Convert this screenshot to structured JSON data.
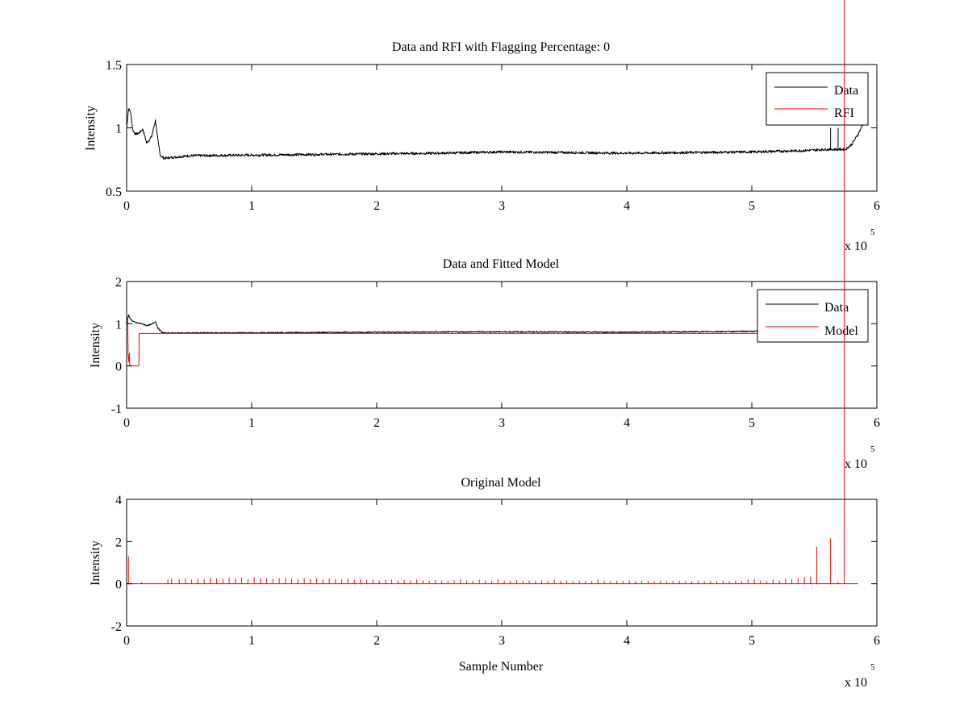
{
  "chart_data": [
    {
      "type": "line",
      "title": "Data and RFI with Flagging Percentage: 0",
      "xlabel": "",
      "ylabel": "Intensity",
      "xlim": [
        0,
        600000
      ],
      "ylim": [
        0.5,
        1.5
      ],
      "xticks": [
        0,
        1,
        2,
        3,
        4,
        5,
        6
      ],
      "xtick_labels": [
        "0",
        "1",
        "2",
        "3",
        "4",
        "5",
        "6"
      ],
      "yticks": [
        0.5,
        1,
        1.5
      ],
      "ytick_labels": [
        "0.5",
        "1",
        "1.5"
      ],
      "x_multiplier_label": "x 10",
      "x_multiplier_exponent": "5",
      "grid": false,
      "legend_position": "top-right",
      "series": [
        {
          "name": "Data",
          "color": "#000000",
          "x": [
            0,
            1500,
            3000,
            5000,
            7000,
            10000,
            13000,
            16000,
            20000,
            23000,
            25000,
            27000,
            30000,
            50000,
            100000,
            150000,
            200000,
            250000,
            300000,
            350000,
            400000,
            450000,
            500000,
            540000,
            560000,
            575000,
            580000,
            585000,
            590000
          ],
          "y": [
            1.0,
            1.15,
            1.13,
            0.98,
            0.95,
            0.96,
            0.99,
            0.88,
            0.93,
            1.06,
            0.9,
            0.78,
            0.76,
            0.78,
            0.785,
            0.79,
            0.795,
            0.8,
            0.81,
            0.805,
            0.8,
            0.805,
            0.81,
            0.82,
            0.83,
            0.83,
            0.87,
            0.95,
            1.05
          ],
          "noise": 0.01
        },
        {
          "name": "RFI",
          "color": "#ff0000",
          "x": [],
          "y": []
        }
      ],
      "boxes": [
        [
          563000,
          0.84,
          1.0
        ],
        [
          569000,
          0.84,
          1.0
        ]
      ]
    },
    {
      "type": "line",
      "title": "Data and Fitted Model",
      "xlabel": "",
      "ylabel": "Intensity",
      "xlim": [
        0,
        600000
      ],
      "ylim": [
        -1,
        2
      ],
      "xticks": [
        0,
        1,
        2,
        3,
        4,
        5,
        6
      ],
      "xtick_labels": [
        "0",
        "1",
        "2",
        "3",
        "4",
        "5",
        "6"
      ],
      "yticks": [
        -1,
        0,
        1,
        2
      ],
      "ytick_labels": [
        "-1",
        "0",
        "1",
        "2"
      ],
      "x_multiplier_label": "x 10",
      "x_multiplier_exponent": "5",
      "grid": false,
      "legend_position": "top-right",
      "series": [
        {
          "name": "Data",
          "color": "#000000",
          "x": [
            0,
            1500,
            3000,
            5000,
            8000,
            12000,
            16000,
            20000,
            23000,
            25000,
            28000,
            30000,
            100000,
            200000,
            300000,
            400000,
            500000,
            540000,
            550000
          ],
          "y": [
            1.0,
            1.2,
            1.12,
            1.05,
            1.02,
            1.0,
            0.96,
            0.98,
            1.06,
            0.9,
            0.8,
            0.78,
            0.785,
            0.8,
            0.81,
            0.8,
            0.82,
            0.83,
            0.84
          ],
          "noise": 0.015
        },
        {
          "name": "Model",
          "color": "#ff0000",
          "x": [
            0,
            800,
            1200,
            1700,
            2200,
            2500,
            3000,
            3500,
            9800,
            10000,
            540000,
            550000
          ],
          "y": [
            1.0,
            1.15,
            0.3,
            0.1,
            0.3,
            0.0,
            0.0,
            0.0,
            0.0,
            0.77,
            0.77,
            0.77
          ]
        }
      ]
    },
    {
      "type": "line",
      "title": "Original Model",
      "xlabel": "Sample Number",
      "ylabel": "Intensity",
      "xlim": [
        0,
        600000
      ],
      "ylim": [
        -2,
        4
      ],
      "xticks": [
        0,
        1,
        2,
        3,
        4,
        5,
        6
      ],
      "xtick_labels": [
        "0",
        "1",
        "2",
        "3",
        "4",
        "5",
        "6"
      ],
      "yticks": [
        -2,
        0,
        2,
        4
      ],
      "ytick_labels": [
        "-2",
        "0",
        "2",
        "4"
      ],
      "x_multiplier_label": "x 10",
      "x_multiplier_exponent": "5",
      "grid": false,
      "series": [
        {
          "color": "#ff0000",
          "baseline": 0,
          "x_start": 0,
          "x_end": 585000,
          "spikes_x": [
            1500,
            12000,
            33000,
            36000,
            42000,
            47000,
            52000,
            57000,
            62000,
            67000,
            72000,
            77000,
            82000,
            87000,
            92000,
            97000,
            102000,
            107000,
            112000,
            117000,
            122000,
            127000,
            132000,
            137000,
            142000,
            147000,
            152000,
            157000,
            162000,
            167000,
            172000,
            177000,
            182000,
            187000,
            192000,
            197000,
            202000,
            207000,
            212000,
            217000,
            222000,
            227000,
            232000,
            237000,
            242000,
            247000,
            252000,
            257000,
            262000,
            267000,
            272000,
            277000,
            282000,
            287000,
            292000,
            297000,
            302000,
            307000,
            312000,
            317000,
            322000,
            327000,
            332000,
            337000,
            342000,
            347000,
            352000,
            357000,
            362000,
            367000,
            372000,
            377000,
            382000,
            387000,
            392000,
            397000,
            402000,
            407000,
            412000,
            417000,
            422000,
            427000,
            432000,
            437000,
            442000,
            447000,
            452000,
            457000,
            462000,
            467000,
            472000,
            477000,
            482000,
            487000,
            492000,
            497000,
            502000,
            507000,
            512000,
            517000,
            522000,
            527000,
            532000,
            537000,
            542000,
            547000,
            552000,
            563000,
            569000,
            574000
          ],
          "spikes_y": [
            1.3,
            0.08,
            0.2,
            0.25,
            0.22,
            0.26,
            0.2,
            0.24,
            0.22,
            0.27,
            0.25,
            0.22,
            0.28,
            0.24,
            0.3,
            0.22,
            0.32,
            0.25,
            0.27,
            0.22,
            0.26,
            0.28,
            0.24,
            0.22,
            0.27,
            0.22,
            0.26,
            0.2,
            0.25,
            0.22,
            0.2,
            0.24,
            0.2,
            0.22,
            0.18,
            0.2,
            0.16,
            0.18,
            0.2,
            0.16,
            0.18,
            0.15,
            0.2,
            0.16,
            0.14,
            0.18,
            0.15,
            0.14,
            0.16,
            0.22,
            0.15,
            0.14,
            0.2,
            0.16,
            0.14,
            0.2,
            0.16,
            0.14,
            0.17,
            0.14,
            0.15,
            0.13,
            0.16,
            0.14,
            0.2,
            0.13,
            0.15,
            0.12,
            0.14,
            0.13,
            0.12,
            0.2,
            0.14,
            0.12,
            0.14,
            0.13,
            0.16,
            0.12,
            0.14,
            0.13,
            0.12,
            0.14,
            0.12,
            0.13,
            0.14,
            0.12,
            0.12,
            0.15,
            0.12,
            0.13,
            0.12,
            0.14,
            0.12,
            0.15,
            0.13,
            0.2,
            0.22,
            0.15,
            0.12,
            0.2,
            0.15,
            0.25,
            0.2,
            0.25,
            0.3,
            0.35,
            1.75,
            2.15,
            0.1
          ]
        }
      ]
    }
  ]
}
